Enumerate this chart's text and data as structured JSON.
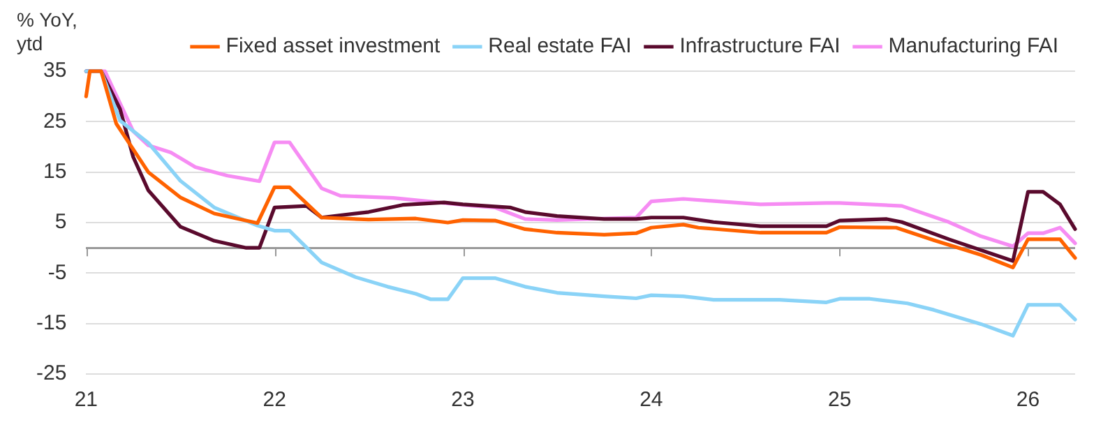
{
  "chart_data": {
    "type": "line",
    "ylabel": "% YoY, ytd",
    "xlim": [
      21,
      26.25
    ],
    "xticks": [
      21,
      22,
      23,
      24,
      25,
      26
    ],
    "ylim": [
      -25,
      35
    ],
    "yticks": [
      35,
      25,
      15,
      5,
      {
        "value": 0,
        "label": null
      },
      -5,
      -15,
      -25
    ],
    "grid": "y",
    "legend": "top",
    "marker": "none",
    "line_style": "solid",
    "series": [
      {
        "name": "Fixed asset investment",
        "color": "#ff6200",
        "x": [
          21.0,
          21.02,
          21.08,
          21.16,
          21.33,
          21.5,
          21.68,
          21.91,
          22.0,
          22.08,
          22.25,
          22.5,
          22.75,
          22.92,
          23.0,
          23.17,
          23.33,
          23.5,
          23.75,
          23.92,
          24.0,
          24.17,
          24.25,
          24.58,
          24.93,
          25.0,
          25.3,
          25.5,
          25.75,
          25.92,
          26.0,
          26.17,
          26.25
        ],
        "values": [
          30,
          35,
          35,
          24.6,
          15,
          10,
          6.8,
          4.9,
          12,
          12,
          6.0,
          5.6,
          5.8,
          5.0,
          5.5,
          5.4,
          3.7,
          3.0,
          2.6,
          2.9,
          4.0,
          4.6,
          4.0,
          3.0,
          3.0,
          4.1,
          4.0,
          1.5,
          -1.4,
          -3.9,
          1.7,
          1.7,
          -2.0
        ]
      },
      {
        "name": "Real estate FAI",
        "color": "#8ad3f7",
        "x": [
          21.0,
          21.02,
          21.08,
          21.18,
          21.33,
          21.5,
          21.68,
          21.91,
          22.0,
          22.08,
          22.25,
          22.43,
          22.6,
          22.75,
          22.83,
          22.92,
          23.0,
          23.17,
          23.33,
          23.5,
          23.75,
          23.92,
          24.0,
          24.17,
          24.33,
          24.68,
          24.93,
          25.0,
          25.16,
          25.36,
          25.5,
          25.75,
          25.92,
          26.0,
          26.17,
          26.25
        ],
        "values": [
          35,
          35,
          35,
          25.2,
          20.8,
          13.3,
          8.0,
          4.4,
          3.4,
          3.4,
          -2.9,
          -5.8,
          -7.7,
          -9.1,
          -10.2,
          -10.2,
          -6.0,
          -6.0,
          -7.7,
          -8.9,
          -9.6,
          -10,
          -9.4,
          -9.6,
          -10.3,
          -10.3,
          -10.8,
          -10.1,
          -10.1,
          -11,
          -12.3,
          -15.1,
          -17.4,
          -11.3,
          -11.3,
          -14.2
        ]
      },
      {
        "name": "Infrastructure FAI",
        "color": "#5a0a2d",
        "x": [
          21.0,
          21.08,
          21.18,
          21.25,
          21.33,
          21.5,
          21.68,
          21.85,
          21.92,
          22.0,
          22.17,
          22.25,
          22.5,
          22.68,
          22.9,
          23.0,
          23.25,
          23.33,
          23.5,
          23.75,
          23.92,
          24.0,
          24.17,
          24.33,
          24.58,
          24.93,
          25.0,
          25.25,
          25.33,
          25.58,
          25.92,
          26.0,
          26.08,
          26.17,
          26.25
        ],
        "values": [
          35,
          35,
          27.5,
          18,
          11.4,
          4.2,
          1.4,
          0,
          0,
          8.0,
          8.3,
          6.0,
          7.1,
          8.5,
          9.0,
          8.6,
          8.0,
          7.1,
          6.3,
          5.7,
          5.7,
          6.0,
          6.0,
          5.1,
          4.3,
          4.3,
          5.4,
          5.7,
          5.1,
          1.7,
          -2.6,
          11.1,
          11.1,
          8.6,
          3.7
        ]
      },
      {
        "name": "Manufacturing FAI",
        "color": "#f68cf3",
        "x": [
          21.0,
          21.1,
          21.25,
          21.33,
          21.45,
          21.58,
          21.75,
          21.92,
          22.0,
          22.08,
          22.16,
          22.25,
          22.35,
          22.63,
          22.9,
          23.0,
          23.17,
          23.33,
          23.5,
          23.92,
          24.0,
          24.17,
          24.58,
          24.93,
          25.0,
          25.33,
          25.58,
          25.75,
          25.92,
          26.0,
          26.08,
          26.17,
          26.25
        ],
        "values": [
          35,
          35,
          23.1,
          20.3,
          18.9,
          16,
          14.3,
          13.2,
          20.9,
          20.9,
          16.6,
          11.8,
          10.3,
          9.9,
          8.9,
          8.5,
          8.0,
          5.7,
          5.5,
          6.0,
          9.2,
          9.7,
          8.6,
          8.9,
          8.9,
          8.3,
          5.1,
          2.3,
          0.3,
          2.9,
          2.9,
          4.0,
          0.9
        ]
      }
    ]
  }
}
